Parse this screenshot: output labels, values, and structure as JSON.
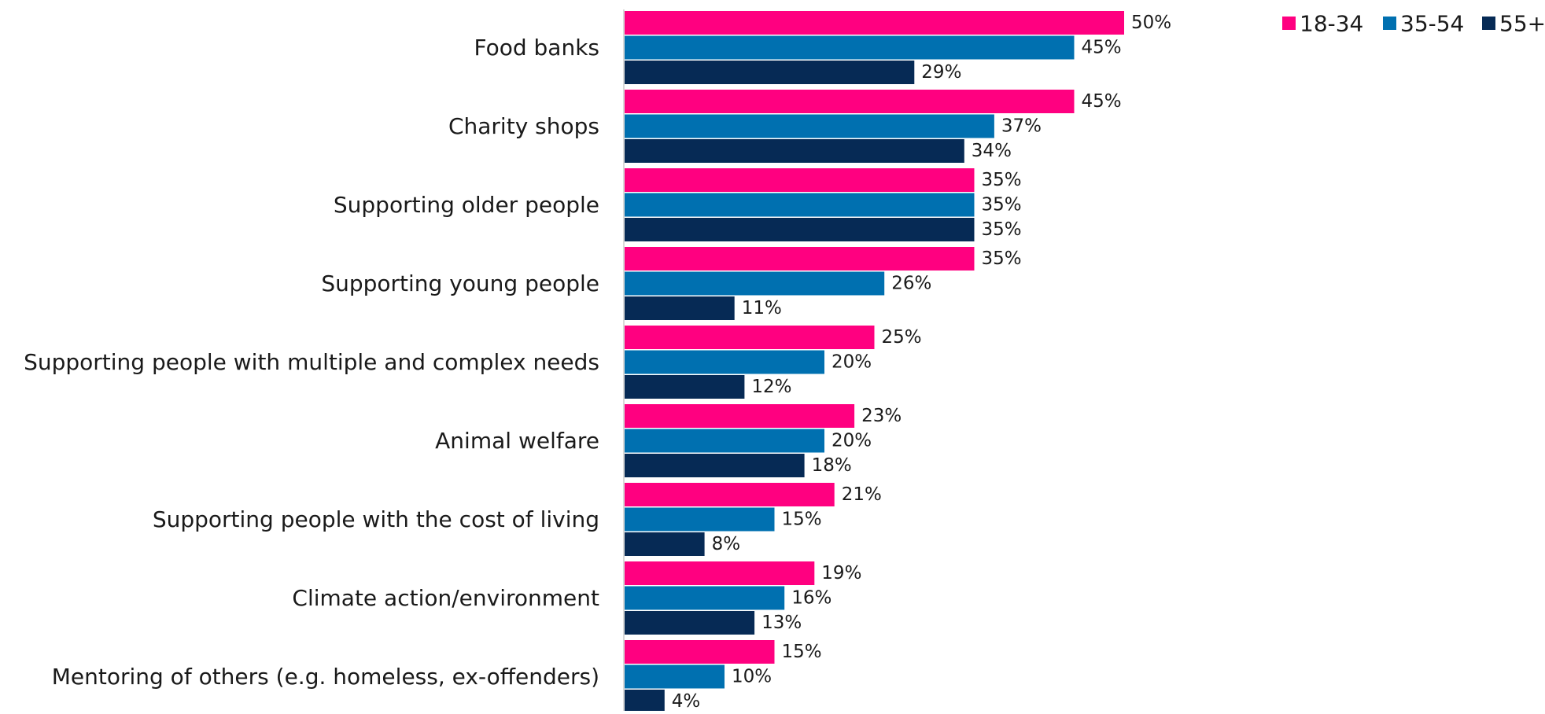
{
  "chart_data": {
    "type": "bar",
    "orientation": "horizontal",
    "categories": [
      "Food banks",
      "Charity shops",
      "Supporting older people",
      "Supporting young people",
      "Supporting people with multiple and complex needs",
      "Animal welfare",
      "Supporting people with the cost of living",
      "Climate action/environment",
      "Mentoring of others (e.g. homeless, ex-offenders)"
    ],
    "series": [
      {
        "name": "18-34",
        "color": "#ff0080",
        "values": [
          50,
          45,
          35,
          35,
          25,
          23,
          21,
          19,
          15
        ]
      },
      {
        "name": "35-54",
        "color": "#0070b0",
        "values": [
          45,
          37,
          35,
          26,
          20,
          20,
          15,
          16,
          10
        ]
      },
      {
        "name": "55+",
        "color": "#062a55",
        "values": [
          29,
          34,
          35,
          11,
          12,
          18,
          8,
          13,
          4
        ]
      }
    ],
    "value_suffix": "%",
    "xlim": [
      0,
      50
    ],
    "grid": false,
    "legend_position": "top-right",
    "data_labels": true
  }
}
